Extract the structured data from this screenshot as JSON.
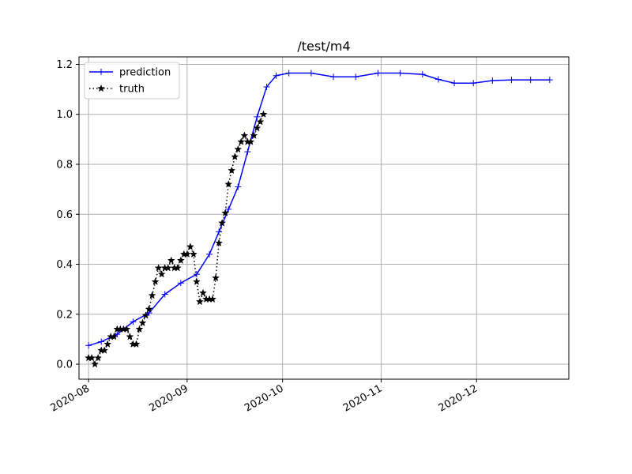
{
  "chart_data": {
    "type": "line",
    "title": "/test/m4",
    "xlabel": "",
    "ylabel": "",
    "x_axis_type": "date",
    "xlim": [
      "2020-07-29",
      "2020-12-30"
    ],
    "ylim": [
      -0.06,
      1.23
    ],
    "grid": true,
    "legend_position": "top-left",
    "x_ticks": [
      "2020-08-01",
      "2020-09-01",
      "2020-10-01",
      "2020-11-01",
      "2020-12-01"
    ],
    "x_tick_labels": [
      "2020-08",
      "2020-09",
      "2020-10",
      "2020-11",
      "2020-12"
    ],
    "y_ticks": [
      0.0,
      0.2,
      0.4,
      0.6,
      0.8,
      1.0,
      1.2
    ],
    "y_tick_labels": [
      "0.0",
      "0.2",
      "0.4",
      "0.6",
      "0.8",
      "1.0",
      "1.2"
    ],
    "series": [
      {
        "name": "prediction",
        "color": "#0000ff",
        "marker": "plus",
        "line_style": "solid",
        "points": [
          [
            "2020-08-01",
            0.075
          ],
          [
            "2020-08-05",
            0.09
          ],
          [
            "2020-08-10",
            0.12
          ],
          [
            "2020-08-15",
            0.17
          ],
          [
            "2020-08-20",
            0.205
          ],
          [
            "2020-08-25",
            0.28
          ],
          [
            "2020-08-30",
            0.325
          ],
          [
            "2020-09-04",
            0.36
          ],
          [
            "2020-09-08",
            0.44
          ],
          [
            "2020-09-11",
            0.53
          ],
          [
            "2020-09-14",
            0.62
          ],
          [
            "2020-09-17",
            0.71
          ],
          [
            "2020-09-20",
            0.85
          ],
          [
            "2020-09-23",
            0.99
          ],
          [
            "2020-09-26",
            1.11
          ],
          [
            "2020-09-29",
            1.155
          ],
          [
            "2020-10-03",
            1.165
          ],
          [
            "2020-10-10",
            1.165
          ],
          [
            "2020-10-17",
            1.15
          ],
          [
            "2020-10-24",
            1.15
          ],
          [
            "2020-10-31",
            1.165
          ],
          [
            "2020-11-07",
            1.165
          ],
          [
            "2020-11-14",
            1.16
          ],
          [
            "2020-11-19",
            1.14
          ],
          [
            "2020-11-24",
            1.125
          ],
          [
            "2020-11-30",
            1.125
          ],
          [
            "2020-12-06",
            1.135
          ],
          [
            "2020-12-12",
            1.138
          ],
          [
            "2020-12-18",
            1.138
          ],
          [
            "2020-12-24",
            1.138
          ]
        ]
      },
      {
        "name": "truth",
        "color": "#000000",
        "marker": "star",
        "line_style": "dotted",
        "points": [
          [
            "2020-08-01",
            0.025
          ],
          [
            "2020-08-02",
            0.025
          ],
          [
            "2020-08-03",
            0.0
          ],
          [
            "2020-08-04",
            0.025
          ],
          [
            "2020-08-05",
            0.055
          ],
          [
            "2020-08-06",
            0.055
          ],
          [
            "2020-08-07",
            0.08
          ],
          [
            "2020-08-08",
            0.11
          ],
          [
            "2020-08-09",
            0.11
          ],
          [
            "2020-08-10",
            0.14
          ],
          [
            "2020-08-11",
            0.14
          ],
          [
            "2020-08-12",
            0.14
          ],
          [
            "2020-08-13",
            0.14
          ],
          [
            "2020-08-14",
            0.11
          ],
          [
            "2020-08-15",
            0.08
          ],
          [
            "2020-08-16",
            0.08
          ],
          [
            "2020-08-17",
            0.14
          ],
          [
            "2020-08-18",
            0.165
          ],
          [
            "2020-08-19",
            0.195
          ],
          [
            "2020-08-20",
            0.22
          ],
          [
            "2020-08-21",
            0.275
          ],
          [
            "2020-08-22",
            0.33
          ],
          [
            "2020-08-23",
            0.385
          ],
          [
            "2020-08-24",
            0.36
          ],
          [
            "2020-08-25",
            0.385
          ],
          [
            "2020-08-26",
            0.385
          ],
          [
            "2020-08-27",
            0.415
          ],
          [
            "2020-08-28",
            0.385
          ],
          [
            "2020-08-29",
            0.385
          ],
          [
            "2020-08-30",
            0.415
          ],
          [
            "2020-08-31",
            0.44
          ],
          [
            "2020-09-01",
            0.44
          ],
          [
            "2020-09-02",
            0.47
          ],
          [
            "2020-09-03",
            0.44
          ],
          [
            "2020-09-04",
            0.33
          ],
          [
            "2020-09-05",
            0.25
          ],
          [
            "2020-09-06",
            0.285
          ],
          [
            "2020-09-07",
            0.26
          ],
          [
            "2020-09-08",
            0.26
          ],
          [
            "2020-09-09",
            0.26
          ],
          [
            "2020-09-10",
            0.345
          ],
          [
            "2020-09-11",
            0.485
          ],
          [
            "2020-09-12",
            0.565
          ],
          [
            "2020-09-13",
            0.605
          ],
          [
            "2020-09-14",
            0.72
          ],
          [
            "2020-09-15",
            0.775
          ],
          [
            "2020-09-16",
            0.83
          ],
          [
            "2020-09-17",
            0.86
          ],
          [
            "2020-09-18",
            0.89
          ],
          [
            "2020-09-19",
            0.915
          ],
          [
            "2020-09-20",
            0.89
          ],
          [
            "2020-09-21",
            0.89
          ],
          [
            "2020-09-22",
            0.915
          ],
          [
            "2020-09-23",
            0.945
          ],
          [
            "2020-09-24",
            0.97
          ],
          [
            "2020-09-25",
            1.0
          ]
        ]
      }
    ]
  }
}
